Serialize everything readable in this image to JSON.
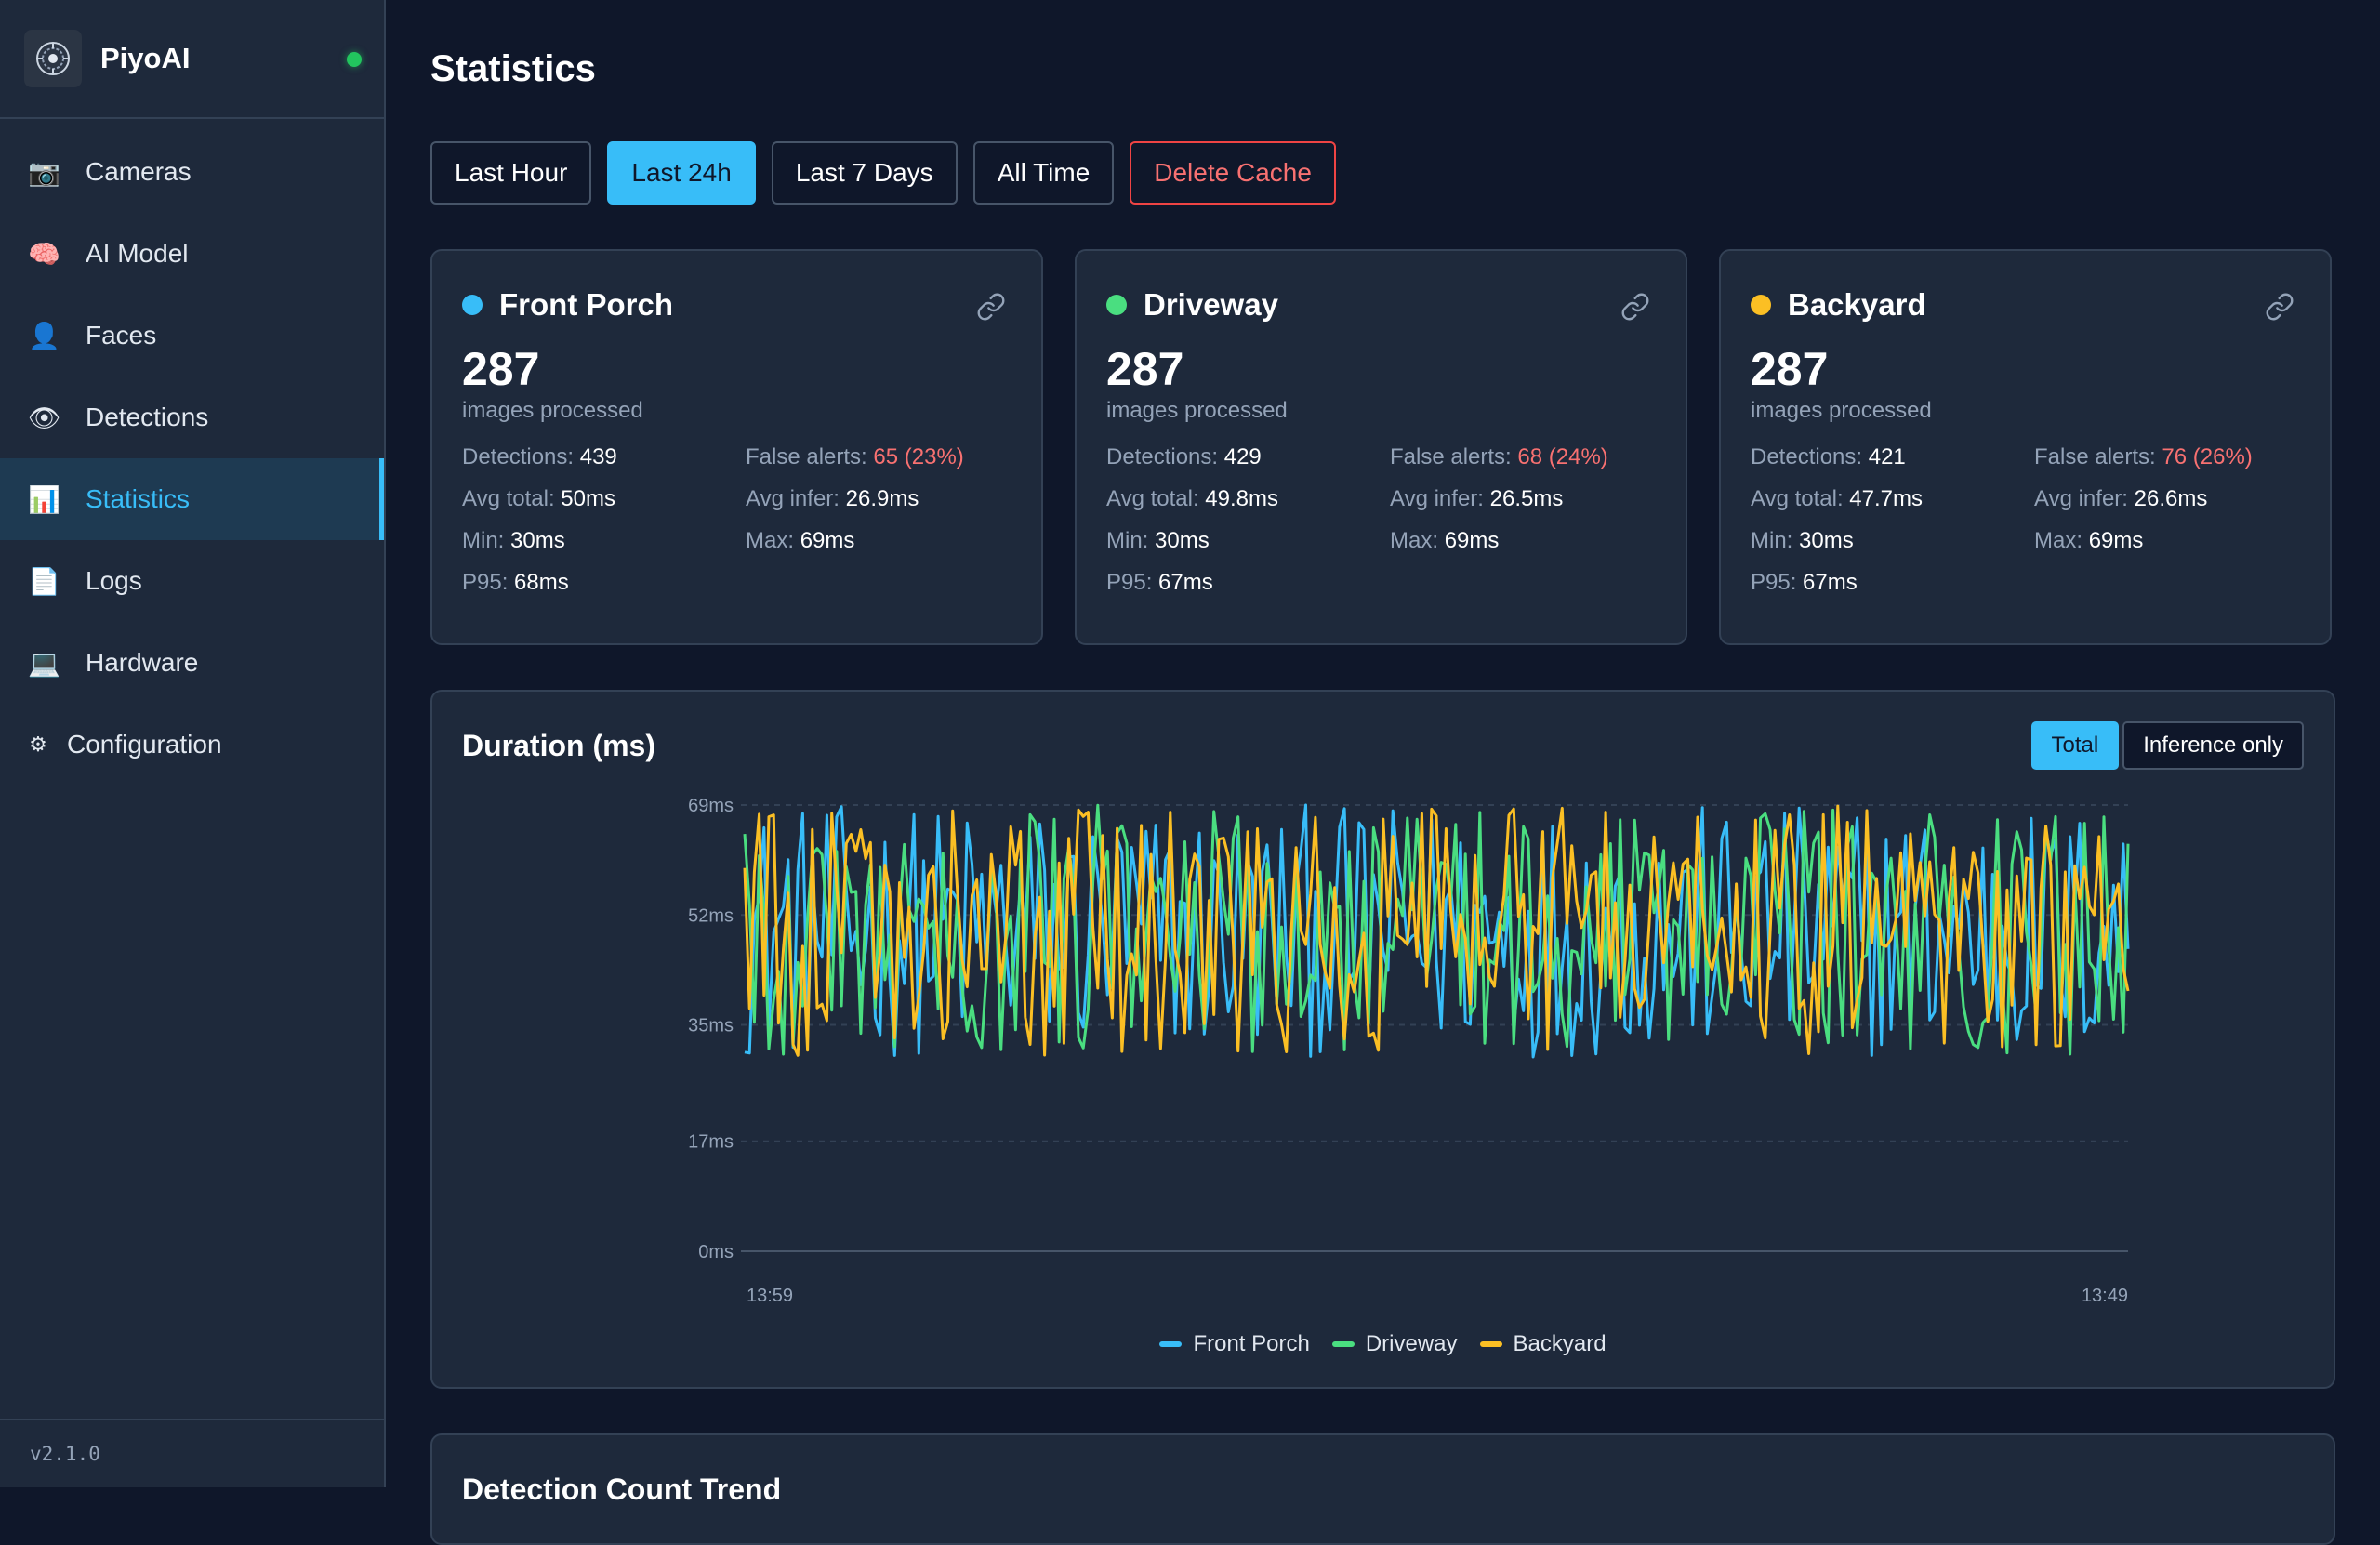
{
  "app": {
    "name": "PiyoAI",
    "version": "v2.1.0",
    "status_color": "#22c55e"
  },
  "sidebar": {
    "items": [
      {
        "label": "Cameras",
        "icon": "camera-icon",
        "glyph": "📷"
      },
      {
        "label": "AI Model",
        "icon": "brain-icon",
        "glyph": "🧠"
      },
      {
        "label": "Faces",
        "icon": "person-icon",
        "glyph": "👤"
      },
      {
        "label": "Detections",
        "icon": "eye-icon",
        "glyph": "👁"
      },
      {
        "label": "Statistics",
        "icon": "bar-chart-icon",
        "glyph": "📊",
        "active": true
      },
      {
        "label": "Logs",
        "icon": "document-icon",
        "glyph": "📄"
      },
      {
        "label": "Hardware",
        "icon": "laptop-icon",
        "glyph": "💻"
      },
      {
        "label": "Configuration",
        "icon": "gear-icon",
        "glyph": "⚙"
      }
    ]
  },
  "page": {
    "title": "Statistics"
  },
  "filters": {
    "last_hour": "Last Hour",
    "last_24h": "Last 24h",
    "last_7_days": "Last 7 Days",
    "all_time": "All Time",
    "delete_cache": "Delete Cache",
    "active": "last_24h"
  },
  "labels": {
    "images_processed": "images processed",
    "detections": "Detections:",
    "false_alerts": "False alerts:",
    "avg_total": "Avg total:",
    "avg_infer": "Avg infer:",
    "min": "Min:",
    "max": "Max:",
    "p95": "P95:"
  },
  "cameras": [
    {
      "name": "Front Porch",
      "color": "#38bdf8",
      "images": "287",
      "detections": "439",
      "false_alerts": "65 (23%)",
      "avg_total": "50ms",
      "avg_infer": "26.9ms",
      "min": "30ms",
      "max": "69ms",
      "p95": "68ms"
    },
    {
      "name": "Driveway",
      "color": "#4ade80",
      "images": "287",
      "detections": "429",
      "false_alerts": "68 (24%)",
      "avg_total": "49.8ms",
      "avg_infer": "26.5ms",
      "min": "30ms",
      "max": "69ms",
      "p95": "67ms"
    },
    {
      "name": "Backyard",
      "color": "#fbbf24",
      "images": "287",
      "detections": "421",
      "false_alerts": "76 (26%)",
      "avg_total": "47.7ms",
      "avg_infer": "26.6ms",
      "min": "30ms",
      "max": "69ms",
      "p95": "67ms"
    }
  ],
  "duration_chart": {
    "title": "Duration (ms)",
    "toggle_total": "Total",
    "toggle_inference": "Inference only",
    "active_toggle": "total"
  },
  "next_section": {
    "title": "Detection Count Trend"
  },
  "chart_data": {
    "type": "line",
    "title": "Duration (ms)",
    "y_ticks": [
      "69ms",
      "52ms",
      "35ms",
      "17ms",
      "0ms"
    ],
    "ylim": [
      0,
      69
    ],
    "x_ticks": [
      "13:59",
      "13:49"
    ],
    "grid": true,
    "legend_position": "bottom",
    "series": [
      {
        "name": "Front Porch",
        "color": "#38bdf8",
        "approx_min": 30,
        "approx_max": 69,
        "approx_mean": 50
      },
      {
        "name": "Driveway",
        "color": "#4ade80",
        "approx_min": 30,
        "approx_max": 69,
        "approx_mean": 49.8
      },
      {
        "name": "Backyard",
        "color": "#fbbf24",
        "approx_min": 30,
        "approx_max": 69,
        "approx_mean": 47.7
      }
    ]
  }
}
